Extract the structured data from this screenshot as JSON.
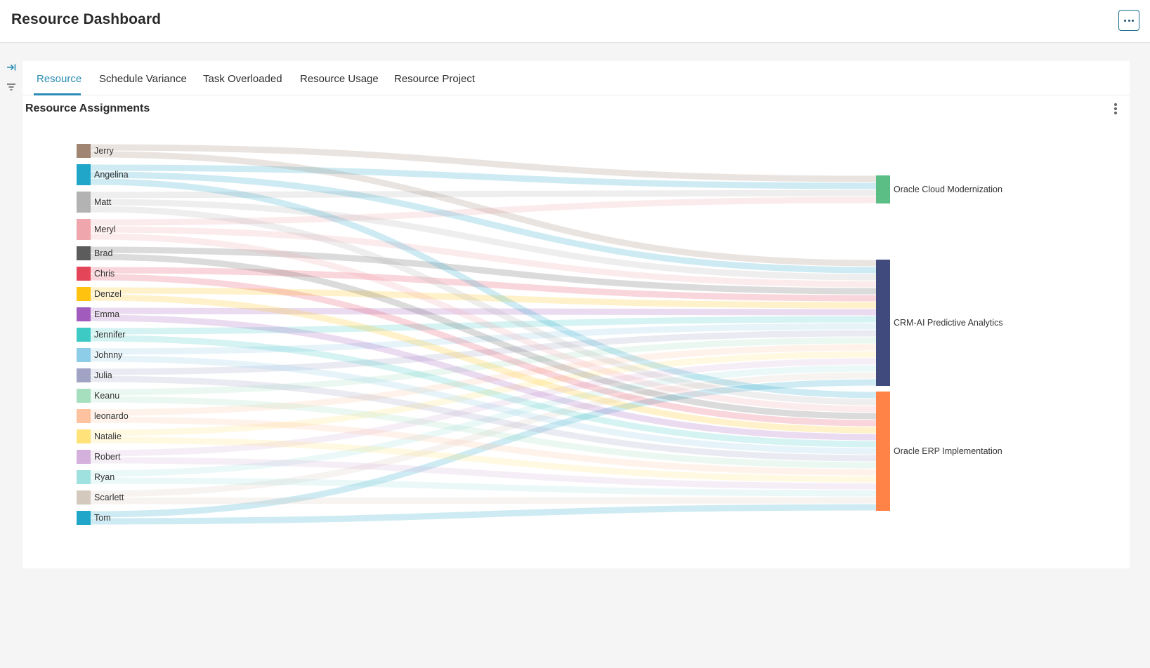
{
  "header": {
    "title": "Resource Dashboard",
    "menu_icon": "more-horizontal-icon"
  },
  "side_rail": {
    "icons": [
      "collapse-panel-icon",
      "filter-icon"
    ]
  },
  "tabs": [
    {
      "label": "Resource",
      "active": true
    },
    {
      "label": "Schedule Variance",
      "active": false
    },
    {
      "label": "Task Overloaded",
      "active": false
    },
    {
      "label": "Resource Usage",
      "active": false
    },
    {
      "label": "Resource Project",
      "active": false
    }
  ],
  "panel": {
    "title": "Resource Assignments",
    "menu_icon": "more-vertical-icon"
  },
  "chart_data": {
    "type": "sankey",
    "sources": [
      {
        "name": "Jerry",
        "color": "#a08672"
      },
      {
        "name": "Angelina",
        "color": "#1fa6c8"
      },
      {
        "name": "Matt",
        "color": "#b3b3b3"
      },
      {
        "name": "Meryl",
        "color": "#f0a6ad"
      },
      {
        "name": "Brad",
        "color": "#5c5c5c"
      },
      {
        "name": "Chris",
        "color": "#e44559"
      },
      {
        "name": "Denzel",
        "color": "#ffc20e"
      },
      {
        "name": "Emma",
        "color": "#a05bbd"
      },
      {
        "name": "Jennifer",
        "color": "#3ecac4"
      },
      {
        "name": "Johnny",
        "color": "#8ecde8"
      },
      {
        "name": "Julia",
        "color": "#a0a3c3"
      },
      {
        "name": "Keanu",
        "color": "#a6dfbd"
      },
      {
        "name": "leonardo",
        "color": "#ffc2a0"
      },
      {
        "name": "Natalie",
        "color": "#ffe27a"
      },
      {
        "name": "Robert",
        "color": "#d4b0dc"
      },
      {
        "name": "Ryan",
        "color": "#9fe1df"
      },
      {
        "name": "Scarlett",
        "color": "#d4c9bd"
      },
      {
        "name": "Tom",
        "color": "#1fa6c8"
      }
    ],
    "targets": [
      {
        "name": "Oracle Cloud Modernization",
        "color": "#5bbf85"
      },
      {
        "name": "CRM-AI Predictive Analytics",
        "color": "#414a7c"
      },
      {
        "name": "Oracle ERP Implementation",
        "color": "#ff8246"
      }
    ],
    "links": [
      {
        "source": "Jerry",
        "target": "Oracle Cloud Modernization",
        "value": 1
      },
      {
        "source": "Angelina",
        "target": "Oracle Cloud Modernization",
        "value": 1
      },
      {
        "source": "Matt",
        "target": "Oracle Cloud Modernization",
        "value": 1
      },
      {
        "source": "Meryl",
        "target": "Oracle Cloud Modernization",
        "value": 1
      },
      {
        "source": "Jerry",
        "target": "CRM-AI Predictive Analytics",
        "value": 1
      },
      {
        "source": "Angelina",
        "target": "CRM-AI Predictive Analytics",
        "value": 1
      },
      {
        "source": "Matt",
        "target": "CRM-AI Predictive Analytics",
        "value": 1
      },
      {
        "source": "Meryl",
        "target": "CRM-AI Predictive Analytics",
        "value": 1
      },
      {
        "source": "Brad",
        "target": "CRM-AI Predictive Analytics",
        "value": 1
      },
      {
        "source": "Chris",
        "target": "CRM-AI Predictive Analytics",
        "value": 1
      },
      {
        "source": "Denzel",
        "target": "CRM-AI Predictive Analytics",
        "value": 1
      },
      {
        "source": "Emma",
        "target": "CRM-AI Predictive Analytics",
        "value": 1
      },
      {
        "source": "Jennifer",
        "target": "CRM-AI Predictive Analytics",
        "value": 1
      },
      {
        "source": "Johnny",
        "target": "CRM-AI Predictive Analytics",
        "value": 1
      },
      {
        "source": "Julia",
        "target": "CRM-AI Predictive Analytics",
        "value": 1
      },
      {
        "source": "Keanu",
        "target": "CRM-AI Predictive Analytics",
        "value": 1
      },
      {
        "source": "leonardo",
        "target": "CRM-AI Predictive Analytics",
        "value": 1
      },
      {
        "source": "Natalie",
        "target": "CRM-AI Predictive Analytics",
        "value": 1
      },
      {
        "source": "Robert",
        "target": "CRM-AI Predictive Analytics",
        "value": 1
      },
      {
        "source": "Ryan",
        "target": "CRM-AI Predictive Analytics",
        "value": 1
      },
      {
        "source": "Scarlett",
        "target": "CRM-AI Predictive Analytics",
        "value": 1
      },
      {
        "source": "Tom",
        "target": "CRM-AI Predictive Analytics",
        "value": 1
      },
      {
        "source": "Angelina",
        "target": "Oracle ERP Implementation",
        "value": 1
      },
      {
        "source": "Matt",
        "target": "Oracle ERP Implementation",
        "value": 1
      },
      {
        "source": "Meryl",
        "target": "Oracle ERP Implementation",
        "value": 1
      },
      {
        "source": "Brad",
        "target": "Oracle ERP Implementation",
        "value": 1
      },
      {
        "source": "Chris",
        "target": "Oracle ERP Implementation",
        "value": 1
      },
      {
        "source": "Denzel",
        "target": "Oracle ERP Implementation",
        "value": 1
      },
      {
        "source": "Emma",
        "target": "Oracle ERP Implementation",
        "value": 1
      },
      {
        "source": "Jennifer",
        "target": "Oracle ERP Implementation",
        "value": 1
      },
      {
        "source": "Johnny",
        "target": "Oracle ERP Implementation",
        "value": 1
      },
      {
        "source": "Julia",
        "target": "Oracle ERP Implementation",
        "value": 1
      },
      {
        "source": "Keanu",
        "target": "Oracle ERP Implementation",
        "value": 1
      },
      {
        "source": "leonardo",
        "target": "Oracle ERP Implementation",
        "value": 1
      },
      {
        "source": "Natalie",
        "target": "Oracle ERP Implementation",
        "value": 1
      },
      {
        "source": "Robert",
        "target": "Oracle ERP Implementation",
        "value": 1
      },
      {
        "source": "Ryan",
        "target": "Oracle ERP Implementation",
        "value": 1
      },
      {
        "source": "Scarlett",
        "target": "Oracle ERP Implementation",
        "value": 1
      },
      {
        "source": "Tom",
        "target": "Oracle ERP Implementation",
        "value": 1
      }
    ]
  }
}
